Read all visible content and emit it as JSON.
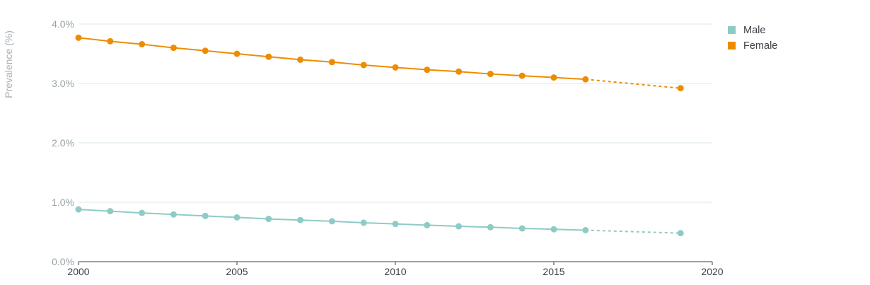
{
  "chart_data": {
    "type": "line",
    "title": "",
    "xlabel": "",
    "ylabel": "Prevalence (%)",
    "xlim": [
      2000,
      2020
    ],
    "ylim": [
      0,
      4
    ],
    "x_ticks": [
      2000,
      2005,
      2010,
      2015,
      2020
    ],
    "x_tick_labels": [
      "2000",
      "2005",
      "2010",
      "2015",
      "2020"
    ],
    "y_ticks": [
      0,
      1,
      2,
      3,
      4
    ],
    "y_tick_labels": [
      "0.0%",
      "1.0%",
      "2.0%",
      "3.0%",
      "4.0%"
    ],
    "grid": true,
    "legend_position": "top-right",
    "series": [
      {
        "name": "Male",
        "color": "#8ecbc6",
        "x": [
          2000,
          2001,
          2002,
          2003,
          2004,
          2005,
          2006,
          2007,
          2008,
          2009,
          2010,
          2011,
          2012,
          2013,
          2014,
          2015,
          2016,
          2019
        ],
        "values": [
          0.88,
          0.85,
          0.82,
          0.795,
          0.77,
          0.745,
          0.72,
          0.7,
          0.68,
          0.655,
          0.635,
          0.615,
          0.595,
          0.58,
          0.56,
          0.545,
          0.53,
          0.48
        ],
        "dashed_from_index": 16
      },
      {
        "name": "Female",
        "color": "#ee8c00",
        "x": [
          2000,
          2001,
          2002,
          2003,
          2004,
          2005,
          2006,
          2007,
          2008,
          2009,
          2010,
          2011,
          2012,
          2013,
          2014,
          2015,
          2016,
          2019
        ],
        "values": [
          3.77,
          3.71,
          3.66,
          3.6,
          3.55,
          3.5,
          3.45,
          3.4,
          3.36,
          3.31,
          3.27,
          3.23,
          3.2,
          3.16,
          3.13,
          3.1,
          3.07,
          2.92
        ],
        "dashed_from_index": 16
      }
    ]
  }
}
